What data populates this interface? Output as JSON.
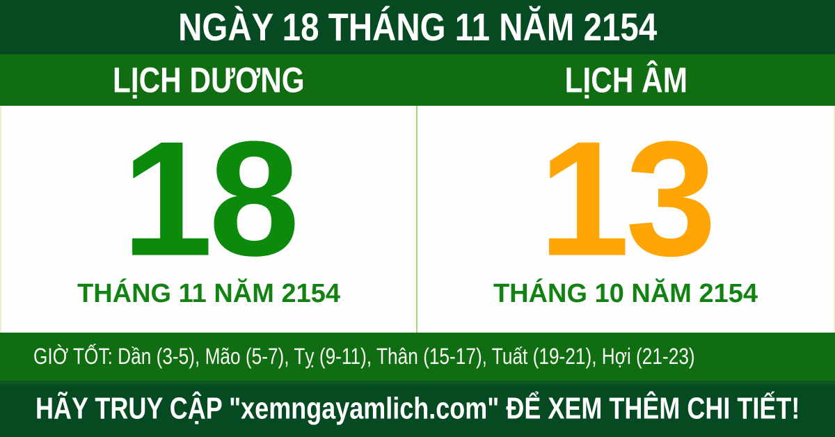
{
  "title_bar": {
    "text": "NGÀY 18 THÁNG 11 NĂM 2154"
  },
  "calendar": {
    "solar": {
      "header": "LỊCH DƯƠNG",
      "day": "18",
      "month_year": "THÁNG 11 NĂM 2154"
    },
    "lunar": {
      "header": "LỊCH ÂM",
      "day": "13",
      "month_year": "THÁNG 10 NĂM 2154"
    }
  },
  "good_hours": {
    "label": "GIỜ TỐT:",
    "hours": "Dần (3-5), Mão (5-7), Tỵ (9-11), Thân (15-17), Tuất (19-21), Hợi (21-23)"
  },
  "footer": {
    "text": "HÃY TRUY CẬP \"xemngayamlich.com\" ĐỂ XEM THÊM CHI TIẾT!"
  },
  "colors": {
    "dark_green": "#054a21",
    "medium_green": "#116d11",
    "solar_day_green": "#0c8a0c",
    "lunar_day_orange": "#ffa506",
    "month_text_green": "#128312",
    "divider_light_green": "#aed479",
    "text_white": "#ffffff"
  }
}
